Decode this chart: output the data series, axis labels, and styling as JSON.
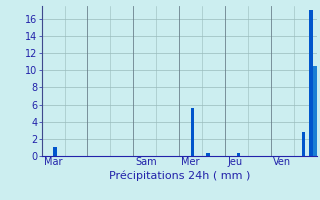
{
  "title": "",
  "xlabel": "Précipitations 24h ( mm )",
  "ylabel": "",
  "background_color": "#cceef0",
  "bar_color_dark": "#0055cc",
  "bar_color_light": "#1a7fd4",
  "ylim": [
    0,
    17.5
  ],
  "yticks": [
    0,
    2,
    4,
    6,
    8,
    10,
    12,
    14,
    16
  ],
  "day_labels": [
    "Mar",
    "Sam",
    "Mer",
    "Jeu",
    "Ven"
  ],
  "day_tick_positions": [
    0,
    24,
    36,
    54,
    72
  ],
  "day_sep_positions": [
    -0.5,
    11.5,
    23.5,
    35.5,
    47.5,
    59.5,
    71.5,
    83.5
  ],
  "bar_values": [
    0,
    0,
    0,
    0,
    0,
    0,
    0,
    0,
    0,
    0,
    0,
    0,
    1.0,
    0,
    0,
    0,
    0,
    0,
    0,
    0,
    0,
    0,
    0,
    0,
    0,
    0,
    0,
    0,
    0,
    0,
    0,
    0,
    0,
    0,
    0,
    0,
    5.6,
    0,
    0,
    0.3,
    0,
    0,
    0,
    0,
    0,
    0,
    0,
    0,
    0,
    0,
    0,
    0.4,
    0,
    0,
    0,
    0,
    0,
    0,
    0,
    0,
    2.8,
    0,
    17.0,
    0,
    10.5,
    0,
    0,
    0,
    0,
    0,
    0,
    0
  ],
  "n_bars": 72,
  "xlabel_fontsize": 8,
  "tick_fontsize": 7,
  "tick_color": "#2222aa",
  "label_color": "#2222aa",
  "grid_color": "#99bbbb",
  "sep_color": "#556677"
}
